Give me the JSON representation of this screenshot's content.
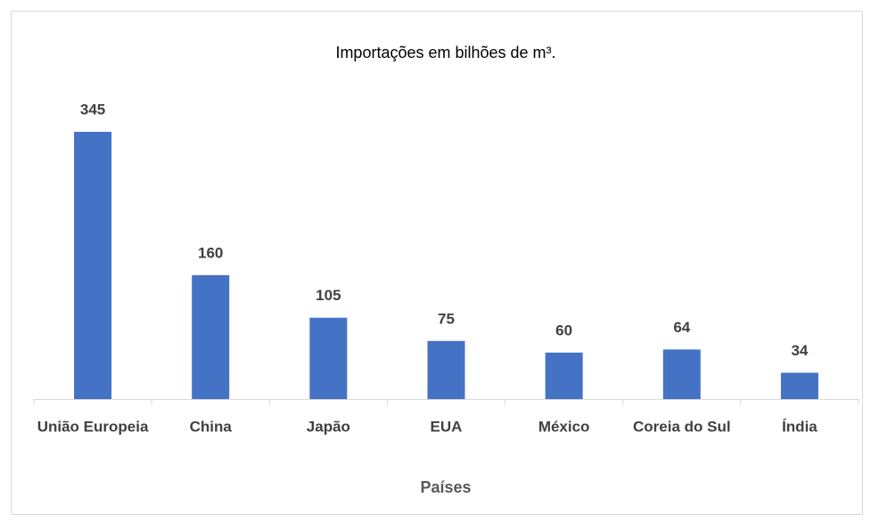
{
  "chart_data": {
    "type": "bar",
    "title": "Importações em bilhões de m³.",
    "x_label": "Países",
    "categories": [
      "União Europeia",
      "China",
      "Japão",
      "EUA",
      "México",
      "Coreia do Sul",
      "Índia"
    ],
    "values": [
      345,
      160,
      105,
      75,
      60,
      64,
      34
    ],
    "color": "#4472c4"
  }
}
